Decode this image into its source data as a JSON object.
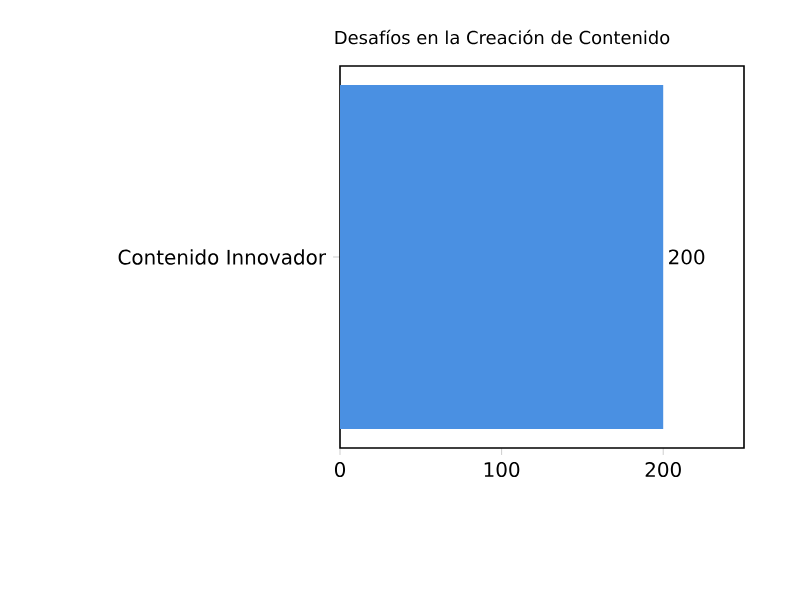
{
  "chart_data": {
    "type": "bar",
    "orientation": "horizontal",
    "title": "Desafíos en la Creación de Contenido",
    "categories": [
      "Contenido Innovador"
    ],
    "values": [
      200
    ],
    "color": "#4a90e2",
    "xlim": [
      0,
      250
    ],
    "xticks": [
      0,
      100,
      200
    ],
    "data_labels": true
  }
}
